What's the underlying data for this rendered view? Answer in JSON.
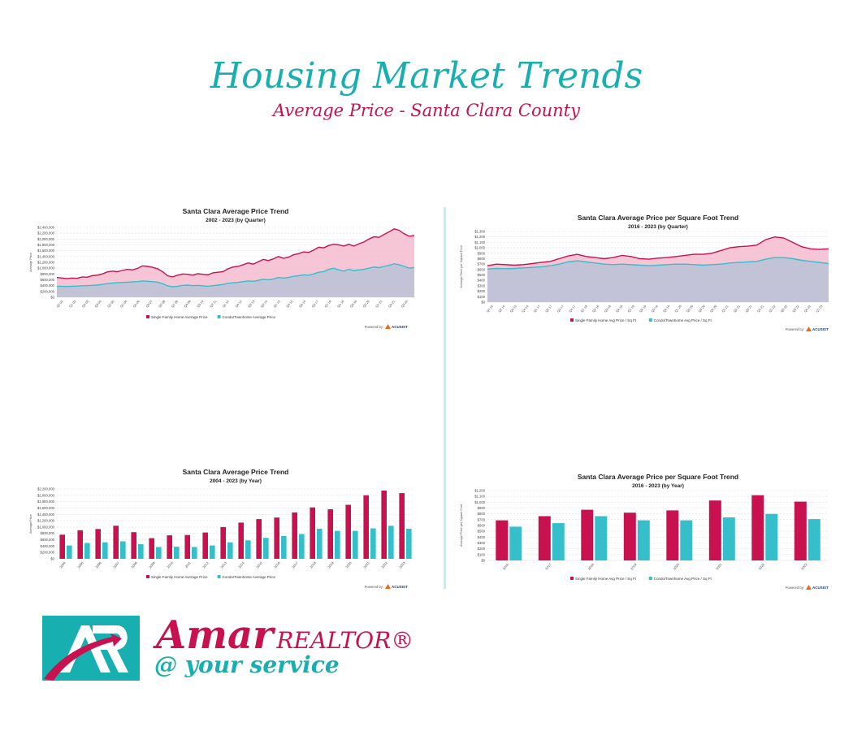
{
  "header": {
    "title": "Housing Market Trends",
    "subtitle": "Average Price - Santa Clara County"
  },
  "colors": {
    "sfh": "#c8124f",
    "condo": "#35bfca",
    "teal": "#17afb0"
  },
  "chart_data": [
    {
      "type": "area",
      "title": "Santa Clara Average Price Trend",
      "subtitle": "2002 - 2023 (by Quarter)",
      "ylabel": "Average Price",
      "ylim": [
        0,
        2400000
      ],
      "yticks": [
        "$0",
        "$200,000",
        "$400,000",
        "$600,000",
        "$800,000",
        "$1,000,000",
        "$1,200,000",
        "$1,400,000",
        "$1,600,000",
        "$1,800,000",
        "$2,000,000",
        "$2,200,000",
        "$2,400,000"
      ],
      "xticks": [
        "Q2 02",
        "Q1 03",
        "Q4 03",
        "Q3 04",
        "Q2 05",
        "Q1 06",
        "Q4 06",
        "Q3 07",
        "Q2 08",
        "Q1 09",
        "Q4 09",
        "Q3 10",
        "Q2 11",
        "Q1 12",
        "Q4 12",
        "Q3 13",
        "Q2 14",
        "Q1 15",
        "Q4 15",
        "Q3 16",
        "Q2 17",
        "Q1 18",
        "Q4 18",
        "Q3 19",
        "Q2 20",
        "Q1 21",
        "Q4 21",
        "Q3 22"
      ],
      "series": [
        {
          "name": "Single Family Home Average Price",
          "values": [
            680000,
            660000,
            640000,
            660000,
            650000,
            700000,
            690000,
            740000,
            760000,
            800000,
            870000,
            900000,
            880000,
            920000,
            960000,
            940000,
            990000,
            1080000,
            1060000,
            1030000,
            980000,
            880000,
            740000,
            700000,
            760000,
            800000,
            790000,
            760000,
            810000,
            790000,
            770000,
            840000,
            860000,
            880000,
            980000,
            1040000,
            1060000,
            1120000,
            1180000,
            1140000,
            1220000,
            1300000,
            1260000,
            1320000,
            1400000,
            1340000,
            1380000,
            1460000,
            1500000,
            1560000,
            1540000,
            1620000,
            1720000,
            1700000,
            1780000,
            1820000,
            1800000,
            1760000,
            1820000,
            1760000,
            1840000,
            1900000,
            2000000,
            2080000,
            2060000,
            2160000,
            2250000,
            2350000,
            2300000,
            2180000,
            2100000,
            2120000
          ]
        },
        {
          "name": "Condo/Townhome Average Price",
          "values": [
            380000,
            375000,
            370000,
            380000,
            385000,
            395000,
            400000,
            410000,
            420000,
            440000,
            470000,
            490000,
            500000,
            510000,
            520000,
            530000,
            540000,
            560000,
            550000,
            540000,
            520000,
            470000,
            390000,
            360000,
            380000,
            410000,
            420000,
            400000,
            410000,
            390000,
            380000,
            400000,
            420000,
            440000,
            480000,
            500000,
            510000,
            540000,
            560000,
            550000,
            580000,
            620000,
            600000,
            630000,
            680000,
            660000,
            680000,
            720000,
            740000,
            770000,
            760000,
            800000,
            860000,
            880000,
            960000,
            1000000,
            940000,
            900000,
            960000,
            920000,
            940000,
            960000,
            1000000,
            1040000,
            1020000,
            1060000,
            1100000,
            1150000,
            1120000,
            1060000,
            1000000,
            1020000
          ]
        }
      ]
    },
    {
      "type": "area",
      "title": "Santa Clara Average Price per Square Foot Trend",
      "subtitle": "2016 - 2023 (by Quarter)",
      "ylabel": "Average Price per Square Foot",
      "ylim": [
        0,
        1300
      ],
      "yticks": [
        "$0",
        "$100",
        "$200",
        "$300",
        "$400",
        "$500",
        "$600",
        "$700",
        "$800",
        "$900",
        "$1,000",
        "$1,100",
        "$1,200",
        "$1,300"
      ],
      "xticks": [
        "Q1 16",
        "Q2 16",
        "Q3 16",
        "Q4 16",
        "Q1 17",
        "Q2 17",
        "Q3 17",
        "Q4 17",
        "Q1 18",
        "Q2 18",
        "Q3 18",
        "Q4 18",
        "Q1 19",
        "Q2 19",
        "Q3 19",
        "Q4 19",
        "Q1 20",
        "Q2 20",
        "Q3 20",
        "Q4 20",
        "Q1 21",
        "Q2 21",
        "Q3 21",
        "Q4 21",
        "Q1 22",
        "Q2 22",
        "Q3 22",
        "Q4 22",
        "Q1 23"
      ],
      "series": [
        {
          "name": "Single Family Home Avg Price / Sq Ft",
          "values": [
            670,
            700,
            690,
            680,
            690,
            710,
            730,
            750,
            800,
            850,
            880,
            840,
            820,
            800,
            820,
            860,
            840,
            800,
            790,
            810,
            820,
            840,
            860,
            880,
            880,
            900,
            950,
            1000,
            1020,
            1030,
            1050,
            1150,
            1200,
            1180,
            1100,
            1020,
            980,
            970,
            980
          ]
        },
        {
          "name": "Condo/Townhome Avg Price / Sq Ft",
          "values": [
            610,
            620,
            615,
            620,
            630,
            640,
            650,
            670,
            700,
            740,
            760,
            740,
            720,
            700,
            690,
            700,
            690,
            680,
            670,
            680,
            690,
            700,
            700,
            690,
            680,
            690,
            700,
            720,
            730,
            740,
            750,
            790,
            820,
            820,
            800,
            770,
            750,
            730,
            710
          ]
        }
      ]
    },
    {
      "type": "bar",
      "title": "Santa Clara Average Price Trend",
      "subtitle": "2004 - 2023 (by Year)",
      "ylabel": "Average Price",
      "ylim": [
        0,
        2200000
      ],
      "yticks": [
        "$0",
        "$200,000",
        "$400,000",
        "$600,000",
        "$800,000",
        "$1,000,000",
        "$1,200,000",
        "$1,400,000",
        "$1,600,000",
        "$1,800,000",
        "$2,000,000",
        "$2,200,000"
      ],
      "categories": [
        "2004",
        "2005",
        "2006",
        "2007",
        "2008",
        "2009",
        "2010",
        "2011",
        "2012",
        "2013",
        "2014",
        "2015",
        "2016",
        "2017",
        "2018",
        "2019",
        "2020",
        "2021",
        "2022",
        "2023"
      ],
      "series": [
        {
          "name": "Single Family Home Average Price",
          "values": [
            760000,
            900000,
            940000,
            1040000,
            840000,
            650000,
            740000,
            750000,
            830000,
            1000000,
            1140000,
            1250000,
            1300000,
            1460000,
            1620000,
            1560000,
            1700000,
            2000000,
            2150000,
            2070000
          ]
        },
        {
          "name": "Condo/Townhome Average Price",
          "values": [
            420000,
            500000,
            520000,
            550000,
            460000,
            370000,
            380000,
            370000,
            420000,
            520000,
            580000,
            660000,
            720000,
            780000,
            950000,
            880000,
            880000,
            960000,
            1040000,
            950000
          ]
        }
      ]
    },
    {
      "type": "bar",
      "title": "Santa Clara Average Price per Square Foot Trend",
      "subtitle": "2016 - 2023 (by Year)",
      "ylabel": "Average Price per Square Foot",
      "ylim": [
        0,
        1200
      ],
      "yticks": [
        "$0",
        "$100",
        "$200",
        "$300",
        "$400",
        "$500",
        "$600",
        "$700",
        "$800",
        "$900",
        "$1,000",
        "$1,100",
        "$1,200"
      ],
      "categories": [
        "2016",
        "2017",
        "2018",
        "2019",
        "2020",
        "2021",
        "2022",
        "2023"
      ],
      "series": [
        {
          "name": "Single Family Home Avg Price / Sq Ft",
          "values": [
            690,
            760,
            870,
            820,
            860,
            1030,
            1120,
            1010
          ]
        },
        {
          "name": "Condo/Townhome Avg Price / Sq Ft",
          "values": [
            580,
            640,
            760,
            690,
            690,
            740,
            800,
            710
          ]
        }
      ]
    }
  ],
  "powered_by": "Powered by:",
  "acusist": "ACUSIST",
  "brand": {
    "name": "Amar",
    "realtor": "REALTOR®",
    "tagline": "@ your service"
  }
}
